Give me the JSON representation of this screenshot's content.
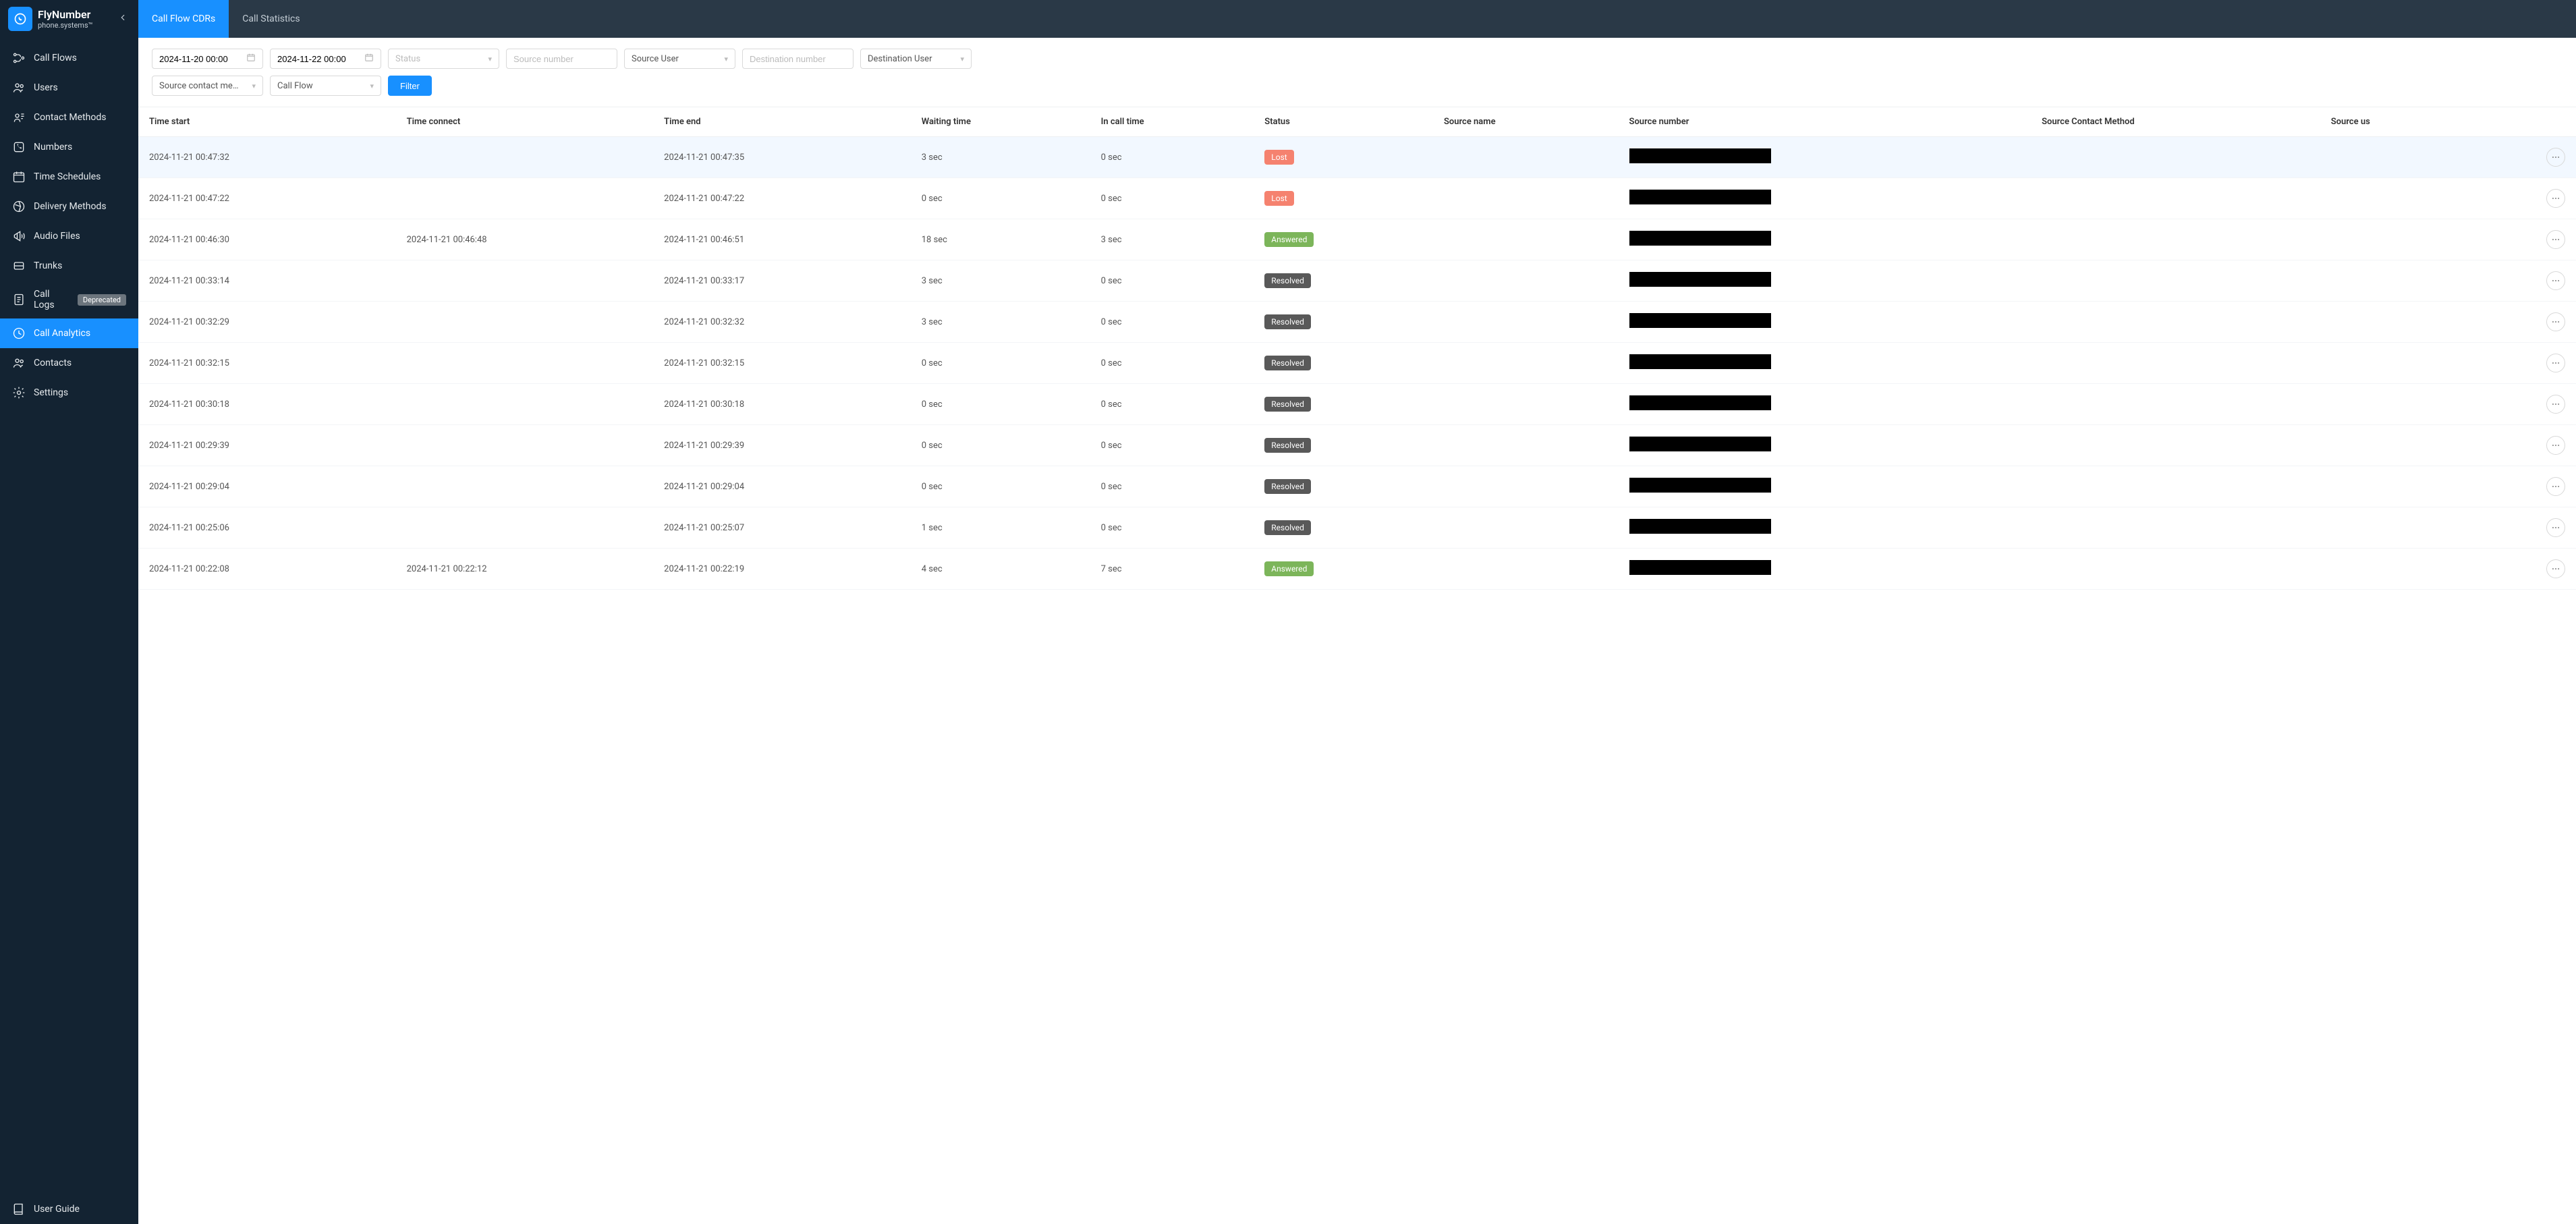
{
  "brand": {
    "title": "FlyNumber",
    "subtitle": "phone.systems™"
  },
  "sidebar": {
    "items": [
      {
        "label": "Call Flows",
        "icon": "flow"
      },
      {
        "label": "Users",
        "icon": "users"
      },
      {
        "label": "Contact Methods",
        "icon": "contact"
      },
      {
        "label": "Numbers",
        "icon": "numbers"
      },
      {
        "label": "Time Schedules",
        "icon": "calendar"
      },
      {
        "label": "Delivery Methods",
        "icon": "delivery"
      },
      {
        "label": "Audio Files",
        "icon": "audio"
      },
      {
        "label": "Trunks",
        "icon": "trunks"
      },
      {
        "label": "Call Logs",
        "icon": "logs",
        "badge": "Deprecated"
      },
      {
        "label": "Call Analytics",
        "icon": "analytics",
        "active": true
      },
      {
        "label": "Contacts",
        "icon": "contacts"
      },
      {
        "label": "Settings",
        "icon": "gear"
      }
    ],
    "footer": {
      "label": "User Guide",
      "icon": "book"
    }
  },
  "tabs": [
    {
      "label": "Call Flow CDRs",
      "active": true
    },
    {
      "label": "Call Statistics"
    }
  ],
  "filters": {
    "date_from": "2024-11-20 00:00",
    "date_to": "2024-11-22 00:00",
    "status_label": "Status",
    "source_number_placeholder": "Source number",
    "source_user_label": "Source User",
    "destination_number_placeholder": "Destination number",
    "destination_user_label": "Destination User",
    "source_contact_method_label": "Source contact meth…",
    "call_flow_label": "Call Flow",
    "filter_button": "Filter"
  },
  "table": {
    "columns": [
      "Time start",
      "Time connect",
      "Time end",
      "Waiting time",
      "In call time",
      "Status",
      "Source name",
      "Source number",
      "Source Contact Method",
      "Source us"
    ],
    "status_colors": {
      "Lost": "#f5826f",
      "Answered": "#7cb55a",
      "Resolved": "#595959"
    },
    "rows": [
      {
        "time_start": "2024-11-21 00:47:32",
        "time_connect": "",
        "time_end": "2024-11-21 00:47:35",
        "waiting": "3 sec",
        "in_call": "0 sec",
        "status": "Lost",
        "hover": true
      },
      {
        "time_start": "2024-11-21 00:47:22",
        "time_connect": "",
        "time_end": "2024-11-21 00:47:22",
        "waiting": "0 sec",
        "in_call": "0 sec",
        "status": "Lost"
      },
      {
        "time_start": "2024-11-21 00:46:30",
        "time_connect": "2024-11-21 00:46:48",
        "time_end": "2024-11-21 00:46:51",
        "waiting": "18 sec",
        "in_call": "3 sec",
        "status": "Answered"
      },
      {
        "time_start": "2024-11-21 00:33:14",
        "time_connect": "",
        "time_end": "2024-11-21 00:33:17",
        "waiting": "3 sec",
        "in_call": "0 sec",
        "status": "Resolved"
      },
      {
        "time_start": "2024-11-21 00:32:29",
        "time_connect": "",
        "time_end": "2024-11-21 00:32:32",
        "waiting": "3 sec",
        "in_call": "0 sec",
        "status": "Resolved"
      },
      {
        "time_start": "2024-11-21 00:32:15",
        "time_connect": "",
        "time_end": "2024-11-21 00:32:15",
        "waiting": "0 sec",
        "in_call": "0 sec",
        "status": "Resolved"
      },
      {
        "time_start": "2024-11-21 00:30:18",
        "time_connect": "",
        "time_end": "2024-11-21 00:30:18",
        "waiting": "0 sec",
        "in_call": "0 sec",
        "status": "Resolved"
      },
      {
        "time_start": "2024-11-21 00:29:39",
        "time_connect": "",
        "time_end": "2024-11-21 00:29:39",
        "waiting": "0 sec",
        "in_call": "0 sec",
        "status": "Resolved"
      },
      {
        "time_start": "2024-11-21 00:29:04",
        "time_connect": "",
        "time_end": "2024-11-21 00:29:04",
        "waiting": "0 sec",
        "in_call": "0 sec",
        "status": "Resolved"
      },
      {
        "time_start": "2024-11-21 00:25:06",
        "time_connect": "",
        "time_end": "2024-11-21 00:25:07",
        "waiting": "1 sec",
        "in_call": "0 sec",
        "status": "Resolved"
      },
      {
        "time_start": "2024-11-21 00:22:08",
        "time_connect": "2024-11-21 00:22:12",
        "time_end": "2024-11-21 00:22:19",
        "waiting": "4 sec",
        "in_call": "7 sec",
        "status": "Answered"
      }
    ]
  },
  "colors": {
    "sidebar_bg": "#132332",
    "topbar_bg": "#2a3947",
    "primary": "#1890ff",
    "border": "#d9d9d9"
  }
}
